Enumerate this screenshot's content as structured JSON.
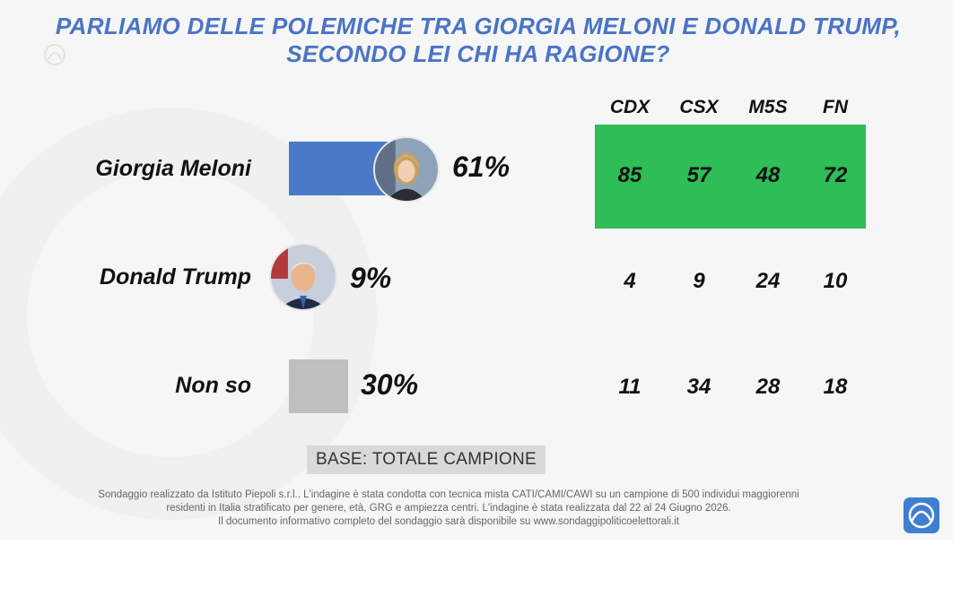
{
  "chart_data": {
    "type": "bar",
    "title": "PARLIAMO DELLE POLEMICHE TRA GIORGIA MELONI E DONALD TRUMP, SECONDO LEI CHI HA RAGIONE?",
    "categories": [
      "Giorgia Meloni",
      "Donald Trump",
      "Non so"
    ],
    "values": [
      61,
      9,
      30
    ],
    "value_labels": [
      "61%",
      "9%",
      "30%"
    ],
    "bar_colors": [
      "#4a7ac7",
      "#4a7ac7",
      "#bfbfbf"
    ],
    "breakdown": {
      "columns": [
        "CDX",
        "CSX",
        "M5S",
        "FN"
      ],
      "rows": [
        [
          85,
          57,
          48,
          72
        ],
        [
          4,
          9,
          24,
          10
        ],
        [
          11,
          34,
          28,
          18
        ]
      ],
      "highlight_row_color": "#2ebd56"
    }
  },
  "base_label": "BASE: TOTALE CAMPIONE",
  "footnote": [
    "Sondaggio realizzato da Istituto Piepoli s.r.l.. L'indagine è stata condotta con tecnica mista CATI/CAMI/CAWI su un campione di 500 individui maggiorenni",
    "residenti in Italia stratificato per genere, età, GRG e ampiezza centri. L'indagine è stata realizzata dal 22 al 24 Giugno 2026.",
    "Il documento informativo completo del sondaggio sarà disponibile su www.sondaggipoliticoelettorali.it"
  ],
  "icons": {
    "logo": "piepoli-logo-icon",
    "meloni_avatar": "meloni-portrait-icon",
    "trump_avatar": "trump-portrait-icon"
  }
}
